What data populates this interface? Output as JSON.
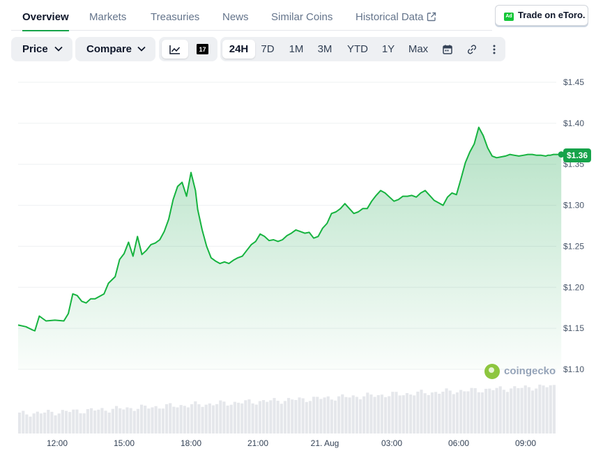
{
  "tabs": [
    {
      "label": "Overview",
      "active": true
    },
    {
      "label": "Markets"
    },
    {
      "label": "Treasuries"
    },
    {
      "label": "News"
    },
    {
      "label": "Similar Coins"
    },
    {
      "label": "Historical Data",
      "icon": "external-link-icon"
    }
  ],
  "ad": {
    "badge": "Ad",
    "label": "Trade on eToro."
  },
  "toolbar": {
    "price_label": "Price",
    "compare_label": "Compare",
    "view_icons": [
      "line-chart-icon",
      "tradingview-icon"
    ],
    "ranges": [
      "24H",
      "7D",
      "1M",
      "3M",
      "YTD",
      "1Y",
      "Max"
    ],
    "selected_range": "24H",
    "extra_icons": [
      "calendar-icon",
      "link-icon",
      "more-icon"
    ]
  },
  "colors": {
    "accent": "#16a34a",
    "line": "#16b33f",
    "tab_underline": "#16a34a"
  },
  "watermark": "coingecko",
  "chart_data": {
    "type": "area",
    "y_ticks": [
      "$1.45",
      "$1.40",
      "$1.35",
      "$1.30",
      "$1.25",
      "$1.20",
      "$1.15",
      "$1.10"
    ],
    "x_ticks": [
      "12:00",
      "15:00",
      "18:00",
      "21:00",
      "21. Aug",
      "03:00",
      "06:00",
      "09:00"
    ],
    "ylim": [
      1.085,
      1.45
    ],
    "x_range_hours": [
      10.25,
      34.6
    ],
    "current_price_label": "$1.36",
    "grid": true,
    "series": [
      {
        "x": [
          10.25,
          10.6,
          10.9,
          11.0,
          11.2,
          11.5,
          11.9,
          12.3,
          12.5,
          12.7,
          12.9,
          13.1,
          13.3,
          13.5,
          13.7,
          13.9,
          14.1,
          14.3,
          14.6,
          14.8,
          15.0,
          15.2,
          15.4,
          15.6,
          15.8,
          16.0,
          16.2,
          16.4,
          16.6,
          16.8,
          17.0,
          17.2,
          17.4,
          17.6,
          17.8,
          18.0,
          18.2,
          18.3,
          18.5,
          18.7,
          18.9,
          19.1,
          19.3,
          19.5,
          19.7,
          19.9,
          20.1,
          20.3,
          20.5,
          20.7,
          20.9,
          21.1,
          21.3,
          21.5,
          21.7,
          21.9,
          22.1,
          22.3,
          22.5,
          22.7,
          22.9,
          23.1,
          23.3,
          23.5,
          23.7,
          23.9,
          24.1,
          24.3,
          24.5,
          24.7,
          24.9,
          25.1,
          25.3,
          25.5,
          25.7,
          25.9,
          26.1,
          26.3,
          26.5,
          26.7,
          26.9,
          27.1,
          27.3,
          27.5,
          27.7,
          27.9,
          28.1,
          28.3,
          28.5,
          28.7,
          28.9,
          29.1,
          29.3,
          29.5,
          29.7,
          29.9,
          30.1,
          30.3,
          30.5,
          30.7,
          30.9,
          31.1,
          31.3,
          31.5,
          31.7,
          31.9,
          32.1,
          32.3,
          32.5,
          32.7,
          32.9,
          33.1,
          33.3,
          33.5,
          33.7,
          33.9,
          34.0,
          34.1,
          34.25,
          34.4,
          34.6
        ],
        "y": [
          1.154,
          1.152,
          1.148,
          1.147,
          1.165,
          1.159,
          1.16,
          1.159,
          1.168,
          1.192,
          1.19,
          1.183,
          1.181,
          1.186,
          1.186,
          1.189,
          1.192,
          1.205,
          1.213,
          1.234,
          1.241,
          1.255,
          1.238,
          1.262,
          1.24,
          1.245,
          1.252,
          1.254,
          1.258,
          1.268,
          1.283,
          1.307,
          1.323,
          1.328,
          1.311,
          1.34,
          1.318,
          1.295,
          1.27,
          1.25,
          1.236,
          1.232,
          1.229,
          1.231,
          1.229,
          1.233,
          1.236,
          1.238,
          1.245,
          1.252,
          1.256,
          1.265,
          1.262,
          1.257,
          1.258,
          1.256,
          1.258,
          1.263,
          1.266,
          1.27,
          1.268,
          1.266,
          1.267,
          1.26,
          1.262,
          1.272,
          1.278,
          1.29,
          1.292,
          1.296,
          1.302,
          1.296,
          1.29,
          1.292,
          1.296,
          1.296,
          1.305,
          1.312,
          1.318,
          1.315,
          1.31,
          1.305,
          1.307,
          1.311,
          1.311,
          1.312,
          1.31,
          1.315,
          1.318,
          1.312,
          1.306,
          1.303,
          1.3,
          1.31,
          1.315,
          1.313,
          1.332,
          1.352,
          1.365,
          1.375,
          1.395,
          1.385,
          1.37,
          1.36,
          1.358,
          1.359,
          1.36,
          1.362,
          1.361,
          1.36,
          1.361,
          1.362,
          1.362,
          1.361,
          1.361,
          1.36,
          1.361,
          1.361,
          1.362,
          1.362,
          1.362
        ]
      }
    ]
  }
}
